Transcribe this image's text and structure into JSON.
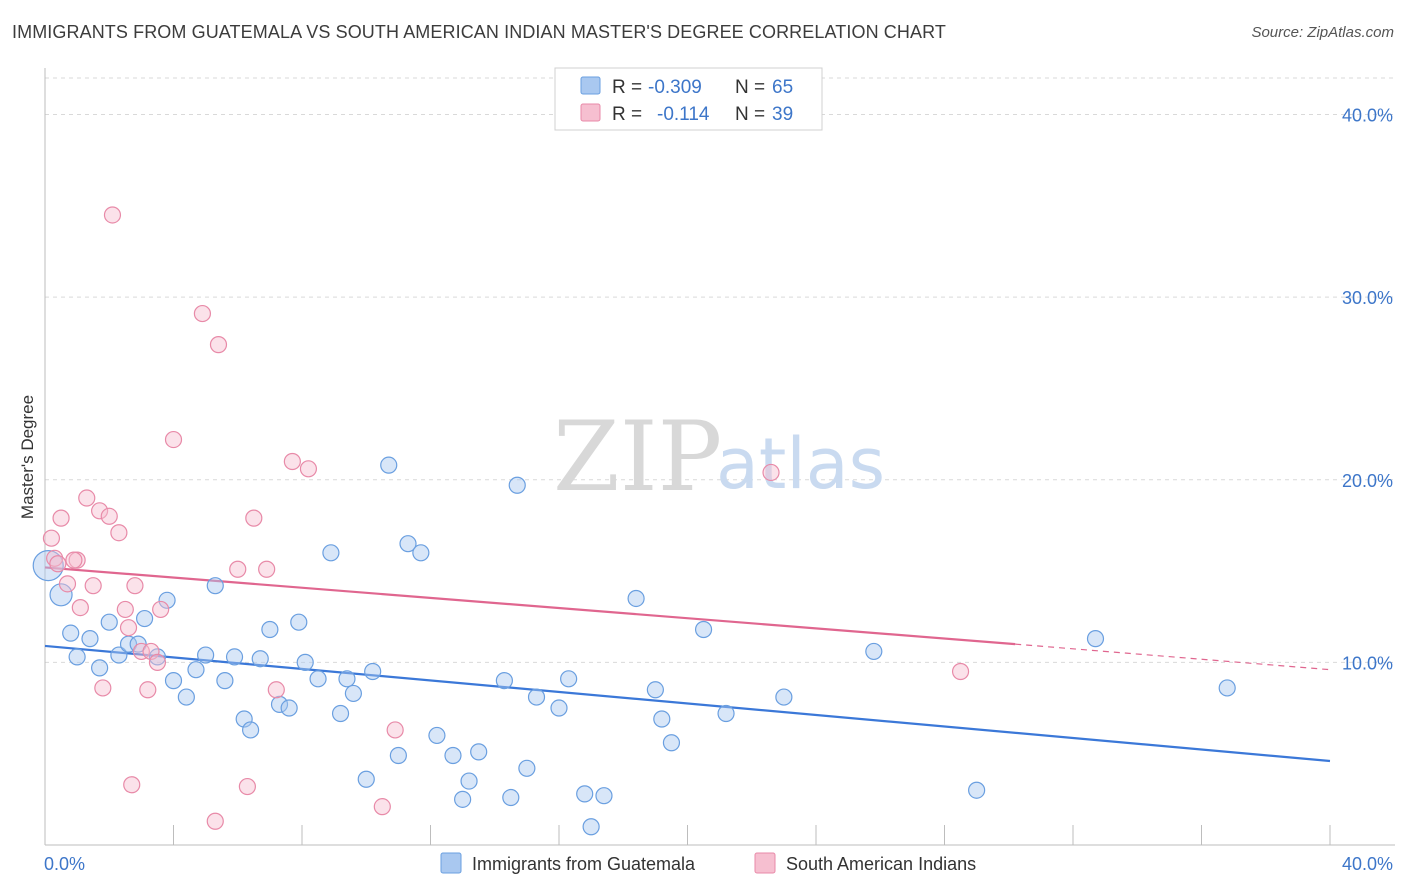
{
  "title": "IMMIGRANTS FROM GUATEMALA VS SOUTH AMERICAN INDIAN MASTER'S DEGREE CORRELATION CHART",
  "source": "Source: ZipAtlas.com",
  "watermark": {
    "zip": "ZIP",
    "atlas": "atlas"
  },
  "legend": {
    "rows": [
      {
        "r_label": "R =",
        "r_value": "-0.309",
        "n_label": "N =",
        "n_value": "65",
        "color": "#a9c8f0",
        "stroke": "#6a9fe0"
      },
      {
        "r_label": "R =",
        "r_value": "-0.114",
        "n_label": "N =",
        "n_value": "39",
        "color": "#f6bfd0",
        "stroke": "#e88aa8"
      }
    ]
  },
  "bottom_legend": [
    {
      "label": "Immigrants from Guatemala",
      "color": "#a9c8f0",
      "stroke": "#6a9fe0"
    },
    {
      "label": "South American Indians",
      "color": "#f6bfd0",
      "stroke": "#e88aa8"
    }
  ],
  "colors": {
    "blue": "#3b78d8",
    "pink": "#e0668f",
    "grid": "#d9d9d9",
    "tick": "#3d76c9"
  },
  "chart_data": {
    "type": "scatter",
    "title": "IMMIGRANTS FROM GUATEMALA VS SOUTH AMERICAN INDIAN MASTER'S DEGREE CORRELATION CHART",
    "xlabel": "",
    "ylabel": "Master's Degree",
    "xlim": [
      0,
      40
    ],
    "ylim": [
      0,
      42
    ],
    "x_tick_labels": [
      "0.0%",
      "40.0%"
    ],
    "y_ticks": [
      10,
      20,
      30,
      40
    ],
    "y_tick_labels": [
      "10.0%",
      "20.0%",
      "30.0%",
      "40.0%"
    ],
    "grid": "horizontal dashed",
    "legend_position": "top-center",
    "series": [
      {
        "name": "Immigrants from Guatemala",
        "color": "#a9c8f0",
        "trend": {
          "x": [
            0,
            40
          ],
          "y": [
            10.9,
            4.6
          ]
        },
        "points": [
          [
            0.1,
            15.3
          ],
          [
            0.5,
            13.7
          ],
          [
            0.8,
            11.6
          ],
          [
            1.0,
            10.3
          ],
          [
            1.4,
            11.3
          ],
          [
            1.7,
            9.7
          ],
          [
            2.0,
            12.2
          ],
          [
            2.3,
            10.4
          ],
          [
            2.6,
            11.0
          ],
          [
            2.9,
            11.0
          ],
          [
            3.1,
            12.4
          ],
          [
            3.5,
            10.3
          ],
          [
            3.8,
            13.4
          ],
          [
            4.0,
            9.0
          ],
          [
            4.4,
            8.1
          ],
          [
            4.7,
            9.6
          ],
          [
            5.0,
            10.4
          ],
          [
            5.3,
            14.2
          ],
          [
            5.6,
            9.0
          ],
          [
            5.9,
            10.3
          ],
          [
            6.2,
            6.9
          ],
          [
            6.4,
            6.3
          ],
          [
            6.7,
            10.2
          ],
          [
            7.0,
            11.8
          ],
          [
            7.3,
            7.7
          ],
          [
            7.6,
            7.5
          ],
          [
            7.9,
            12.2
          ],
          [
            8.1,
            10.0
          ],
          [
            8.5,
            9.1
          ],
          [
            8.9,
            16.0
          ],
          [
            9.2,
            7.2
          ],
          [
            9.4,
            9.1
          ],
          [
            9.6,
            8.3
          ],
          [
            10.0,
            3.6
          ],
          [
            10.2,
            9.5
          ],
          [
            10.7,
            20.8
          ],
          [
            11.0,
            4.9
          ],
          [
            11.3,
            16.5
          ],
          [
            11.7,
            16.0
          ],
          [
            12.2,
            6.0
          ],
          [
            12.7,
            4.9
          ],
          [
            13.0,
            2.5
          ],
          [
            13.2,
            3.5
          ],
          [
            13.5,
            5.1
          ],
          [
            14.3,
            9.0
          ],
          [
            14.5,
            2.6
          ],
          [
            14.7,
            19.7
          ],
          [
            15.0,
            4.2
          ],
          [
            15.3,
            8.1
          ],
          [
            16.0,
            7.5
          ],
          [
            16.3,
            9.1
          ],
          [
            16.8,
            2.8
          ],
          [
            17.0,
            1.0
          ],
          [
            17.4,
            2.7
          ],
          [
            18.4,
            13.5
          ],
          [
            19.0,
            8.5
          ],
          [
            19.2,
            6.9
          ],
          [
            19.5,
            5.6
          ],
          [
            20.5,
            11.8
          ],
          [
            21.2,
            7.2
          ],
          [
            23.0,
            8.1
          ],
          [
            25.8,
            10.6
          ],
          [
            29.0,
            3.0
          ],
          [
            32.7,
            11.3
          ],
          [
            36.8,
            8.6
          ]
        ]
      },
      {
        "name": "South American Indians",
        "color": "#f6bfd0",
        "trend": {
          "x": [
            0,
            30.2,
            40
          ],
          "y": [
            15.2,
            11.0,
            9.6
          ]
        },
        "points": [
          [
            0.2,
            16.8
          ],
          [
            0.3,
            15.7
          ],
          [
            0.5,
            17.9
          ],
          [
            0.7,
            14.3
          ],
          [
            1.0,
            15.6
          ],
          [
            1.1,
            13.0
          ],
          [
            1.3,
            19.0
          ],
          [
            1.5,
            14.2
          ],
          [
            1.7,
            18.3
          ],
          [
            1.8,
            8.6
          ],
          [
            2.0,
            18.0
          ],
          [
            2.1,
            34.5
          ],
          [
            2.3,
            17.1
          ],
          [
            2.5,
            12.9
          ],
          [
            2.6,
            11.9
          ],
          [
            2.7,
            3.3
          ],
          [
            2.8,
            14.2
          ],
          [
            3.0,
            10.6
          ],
          [
            3.2,
            8.5
          ],
          [
            3.3,
            10.6
          ],
          [
            3.5,
            10.0
          ],
          [
            3.6,
            12.9
          ],
          [
            4.0,
            22.2
          ],
          [
            4.9,
            29.1
          ],
          [
            5.3,
            1.3
          ],
          [
            5.4,
            27.4
          ],
          [
            6.0,
            15.1
          ],
          [
            6.3,
            3.2
          ],
          [
            6.5,
            17.9
          ],
          [
            6.9,
            15.1
          ],
          [
            7.2,
            8.5
          ],
          [
            7.7,
            21.0
          ],
          [
            8.2,
            20.6
          ],
          [
            10.5,
            2.1
          ],
          [
            10.9,
            6.3
          ],
          [
            22.6,
            20.4
          ],
          [
            28.5,
            9.5
          ],
          [
            0.4,
            15.4
          ],
          [
            0.9,
            15.6
          ]
        ]
      }
    ]
  }
}
